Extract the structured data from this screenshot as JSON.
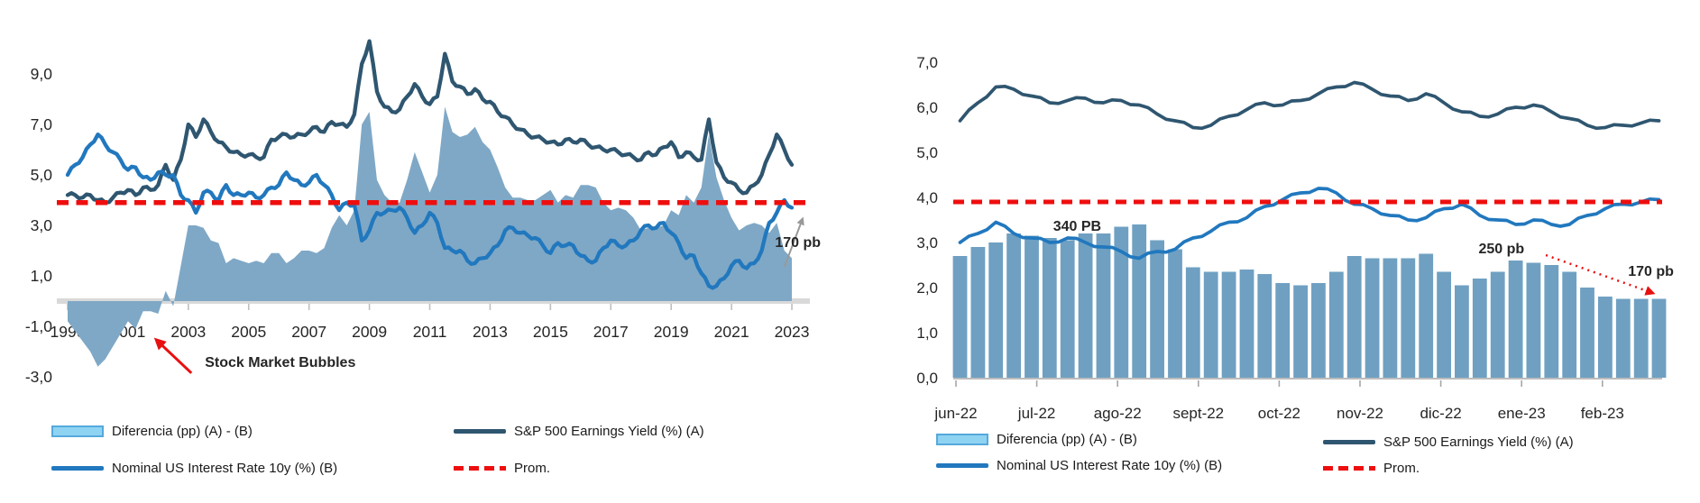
{
  "colors": {
    "earnings_yield_line": "#2F5670",
    "rate_line": "#2178BE",
    "diff_area": "#7FA8C6",
    "bar_fill": "#6FA0C2",
    "legend_diff_fill": "#8FD3F2",
    "legend_diff_border": "#55A9DC",
    "prom_line": "#EE0E0E",
    "axis_text": "#262626",
    "axis_band": "#D9D9D9",
    "axis_line": "#A6A6A6",
    "annotation_red": "#E81010",
    "annotation_gray": "#999999"
  },
  "legend": {
    "diff": "Diferencia (pp) (A) - (B)",
    "ey": "S&P 500 Earnings Yield (%) (A)",
    "rate": "Nominal US Interest Rate 10y (%) (B)",
    "prom": "Prom."
  },
  "chart_data": [
    {
      "id": "sp500-earnings-yield-vs-10y-1999-2023",
      "type": "area-line-combo",
      "x_axis": {
        "unit": "year",
        "start": 1999.0,
        "step": 0.25,
        "tick_positions": [
          1999,
          2001,
          2003,
          2005,
          2007,
          2009,
          2011,
          2013,
          2015,
          2017,
          2019,
          2021,
          2023
        ],
        "tick_labels": [
          "1999",
          "2001",
          "2003",
          "2005",
          "2007",
          "2009",
          "2011",
          "2013",
          "2015",
          "2017",
          "2019",
          "2021",
          "2023"
        ]
      },
      "y_axis": {
        "min": -3.5,
        "max": 11,
        "tick_values": [
          9,
          7,
          5,
          3,
          1,
          -1,
          -3
        ],
        "tick_labels": [
          "9,0",
          "7,0",
          "5,0",
          "3,0",
          "1,0",
          "-1,0",
          "-3,0"
        ]
      },
      "series": [
        {
          "role": "diff",
          "type": "area",
          "name": "Diferencia (pp) (A) - (B)",
          "derived": "A minus B"
        },
        {
          "role": "A",
          "type": "line",
          "name": "S&P 500 Earnings Yield (%) (A)",
          "values": [
            4.2,
            4.2,
            4.1,
            4.2,
            4.0,
            3.9,
            4.1,
            4.3,
            4.4,
            4.2,
            4.5,
            4.4,
            4.6,
            5.4,
            4.8,
            5.6,
            7.0,
            6.5,
            7.2,
            6.7,
            6.3,
            6.1,
            5.9,
            5.8,
            5.8,
            5.7,
            5.7,
            6.4,
            6.5,
            6.6,
            6.5,
            6.6,
            6.7,
            6.9,
            6.7,
            7.1,
            7.0,
            6.9,
            7.4,
            9.4,
            10.3,
            8.3,
            7.7,
            7.5,
            7.6,
            8.1,
            8.6,
            8.1,
            7.8,
            8.1,
            9.8,
            8.7,
            8.5,
            8.2,
            8.4,
            8.0,
            7.9,
            7.5,
            7.3,
            7.0,
            6.8,
            6.6,
            6.5,
            6.4,
            6.3,
            6.2,
            6.4,
            6.3,
            6.4,
            6.2,
            6.1,
            6.0,
            6.0,
            5.9,
            5.8,
            5.7,
            5.6,
            5.9,
            5.8,
            6.1,
            6.3,
            5.7,
            5.9,
            5.7,
            5.6,
            7.2,
            5.5,
            4.9,
            4.7,
            4.4,
            4.3,
            4.6,
            5.0,
            5.8,
            6.6,
            6.0,
            5.4
          ]
        },
        {
          "role": "B",
          "type": "line",
          "name": "Nominal US Interest Rate 10y (%) (B)",
          "values": [
            5.0,
            5.4,
            5.7,
            6.2,
            6.6,
            6.2,
            5.9,
            5.6,
            5.2,
            5.3,
            4.9,
            4.8,
            5.1,
            5.0,
            5.0,
            4.2,
            4.0,
            3.5,
            4.3,
            4.3,
            4.0,
            4.6,
            4.2,
            4.2,
            4.3,
            4.1,
            4.2,
            4.5,
            4.6,
            5.1,
            4.8,
            4.6,
            4.7,
            5.0,
            4.6,
            4.2,
            3.6,
            3.9,
            3.8,
            2.4,
            2.8,
            3.5,
            3.5,
            3.6,
            3.7,
            3.3,
            2.7,
            3.0,
            3.5,
            3.1,
            2.1,
            2.0,
            2.0,
            1.6,
            1.5,
            1.7,
            1.9,
            2.2,
            2.8,
            2.9,
            2.7,
            2.6,
            2.5,
            2.2,
            1.9,
            2.3,
            2.2,
            2.2,
            1.8,
            1.6,
            1.6,
            2.1,
            2.4,
            2.2,
            2.2,
            2.4,
            2.8,
            3.0,
            2.9,
            3.1,
            2.7,
            2.3,
            1.7,
            1.8,
            1.1,
            0.6,
            0.6,
            0.9,
            1.4,
            1.6,
            1.3,
            1.5,
            2.0,
            3.1,
            3.5,
            4.0,
            3.7
          ]
        },
        {
          "role": "prom",
          "type": "hline",
          "name": "Prom.",
          "value": 3.9
        }
      ],
      "annotations": [
        {
          "text": "Stock Market Bubbles",
          "x": 2003.55,
          "y": -2.45,
          "align": "start",
          "arrow": {
            "x1": 2003.1,
            "y1": -2.85,
            "x2": 2001.95,
            "y2": -1.55,
            "head": "red",
            "width": 3,
            "dash": ""
          }
        },
        {
          "text": "170 pb",
          "x": 2023.2,
          "y": 2.3,
          "align": "middle",
          "arrow": {
            "x1": 2022.75,
            "y1": 1.35,
            "x2": 2023.35,
            "y2": 3.25,
            "head": "gray",
            "width": 2,
            "dash": ""
          }
        }
      ]
    },
    {
      "id": "sp500-earnings-yield-vs-10y-jun22-feb23",
      "type": "bar-line-combo",
      "x_axis": {
        "unit": "month",
        "start": 0.05,
        "step": 0.2218,
        "tick_positions": [
          0,
          1,
          2,
          3,
          4,
          5,
          6,
          7,
          8
        ],
        "tick_labels": [
          "jun-22",
          "jul-22",
          "ago-22",
          "sept-22",
          "oct-22",
          "nov-22",
          "dic-22",
          "ene-23",
          "feb-23"
        ]
      },
      "y_axis": {
        "min": 0,
        "max": 7,
        "tick_values": [
          7,
          6,
          5,
          4,
          3,
          2,
          1,
          0
        ],
        "tick_labels": [
          "7,0",
          "6,0",
          "5,0",
          "4,0",
          "3,0",
          "2,0",
          "1,0",
          "0,0"
        ]
      },
      "series": [
        {
          "role": "diff",
          "type": "bar",
          "name": "Diferencia (pp) (A) - (B)",
          "derived": "A minus B"
        },
        {
          "role": "A",
          "type": "line",
          "name": "S&P 500 Earnings Yield (%) (A)",
          "values": [
            5.7,
            6.1,
            6.45,
            6.4,
            6.25,
            6.1,
            6.15,
            6.2,
            6.1,
            6.15,
            6.05,
            5.85,
            5.7,
            5.55,
            5.6,
            5.8,
            5.95,
            6.1,
            6.05,
            6.15,
            6.3,
            6.45,
            6.55,
            6.4,
            6.25,
            6.15,
            6.3,
            6.1,
            5.9,
            5.8,
            5.85,
            6.0,
            6.05,
            5.9,
            5.75,
            5.6,
            5.55,
            5.6,
            5.65,
            5.7
          ]
        },
        {
          "role": "B",
          "type": "line",
          "name": "Nominal US Interest Rate 10y (%) (B)",
          "values": [
            3.0,
            3.2,
            3.45,
            3.2,
            3.1,
            3.0,
            3.1,
            3.0,
            2.9,
            2.8,
            2.65,
            2.8,
            2.85,
            3.1,
            3.25,
            3.45,
            3.55,
            3.8,
            3.95,
            4.1,
            4.2,
            4.1,
            3.85,
            3.75,
            3.6,
            3.5,
            3.55,
            3.75,
            3.85,
            3.6,
            3.5,
            3.4,
            3.5,
            3.4,
            3.4,
            3.6,
            3.75,
            3.85,
            3.9,
            3.95
          ]
        },
        {
          "role": "prom",
          "type": "hline",
          "name": "Prom.",
          "value": 3.9
        }
      ],
      "annotations": [
        {
          "text": "340 PB",
          "x": 1.5,
          "y": 3.35,
          "align": "middle",
          "arrow": null
        },
        {
          "text": "250 pb",
          "x": 6.75,
          "y": 2.85,
          "align": "middle",
          "arrow": {
            "x1": 7.3,
            "y1": 2.72,
            "x2": 8.62,
            "y2": 1.88,
            "head": "red",
            "width": 2.5,
            "dash": "2 5"
          }
        },
        {
          "text": "170 pb",
          "x": 8.6,
          "y": 2.35,
          "align": "middle",
          "arrow": null
        }
      ]
    }
  ]
}
